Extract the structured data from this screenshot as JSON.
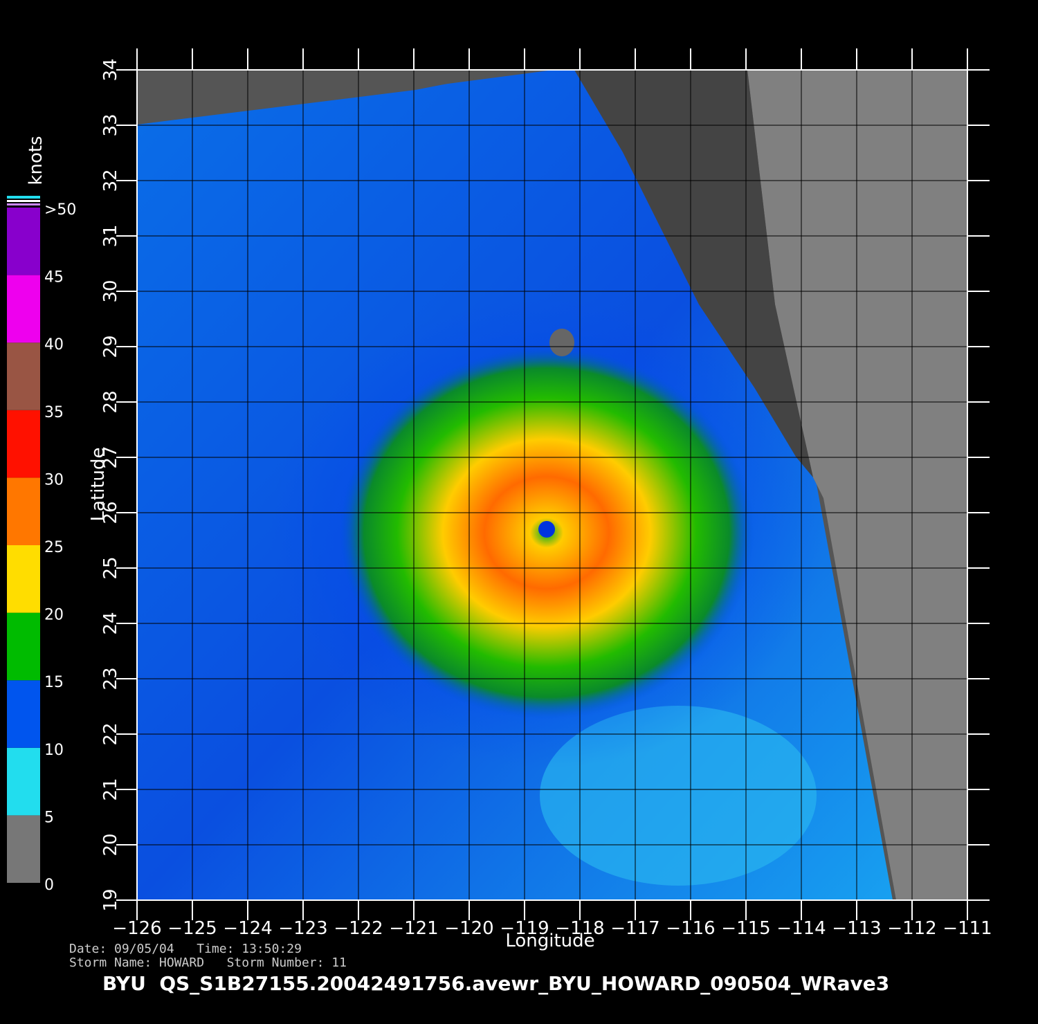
{
  "map": {
    "xlabel": "Longitude",
    "ylabel": "Latitude",
    "xlim": [
      -126,
      -111
    ],
    "ylim": [
      19,
      34
    ],
    "xticks": [
      {
        "value": -126,
        "label": "−126"
      },
      {
        "value": -125,
        "label": "−125"
      },
      {
        "value": -124,
        "label": "−124"
      },
      {
        "value": -123,
        "label": "−123"
      },
      {
        "value": -122,
        "label": "−122"
      },
      {
        "value": -121,
        "label": "−121"
      },
      {
        "value": -120,
        "label": "−120"
      },
      {
        "value": -119,
        "label": "−119"
      },
      {
        "value": -118,
        "label": "−118"
      },
      {
        "value": -117,
        "label": "−117"
      },
      {
        "value": -116,
        "label": "−116"
      },
      {
        "value": -115,
        "label": "−115"
      },
      {
        "value": -114,
        "label": "−114"
      },
      {
        "value": -113,
        "label": "−113"
      },
      {
        "value": -112,
        "label": "−112"
      },
      {
        "value": -111,
        "label": "−111"
      }
    ],
    "yticks": [
      19,
      20,
      21,
      22,
      23,
      24,
      25,
      26,
      27,
      28,
      29,
      30,
      31,
      32,
      33,
      34
    ],
    "grid": true
  },
  "colorbar": {
    "title": "knots",
    "lim": [
      0,
      50
    ],
    "ticks": [
      0,
      5,
      10,
      15,
      20,
      25,
      30,
      35,
      40,
      45,
      {
        "value": 50,
        "label": ">50"
      }
    ],
    "colors": [
      "#777777",
      "#22ddee",
      "#0055ee",
      "#00bb00",
      "#ffdd00",
      "#ff7700",
      "#ff1100",
      "#995544",
      "#ee00ee",
      "#8800cc"
    ]
  },
  "footer": {
    "line1": "Date: 09/05/04   Time: 13:50:29",
    "line2": "Storm Name: HOWARD   Storm Number: 11",
    "title": "BYU  QS_S1B27155.20042491756.avewr_BYU_HOWARD_090504_WRave3"
  }
}
